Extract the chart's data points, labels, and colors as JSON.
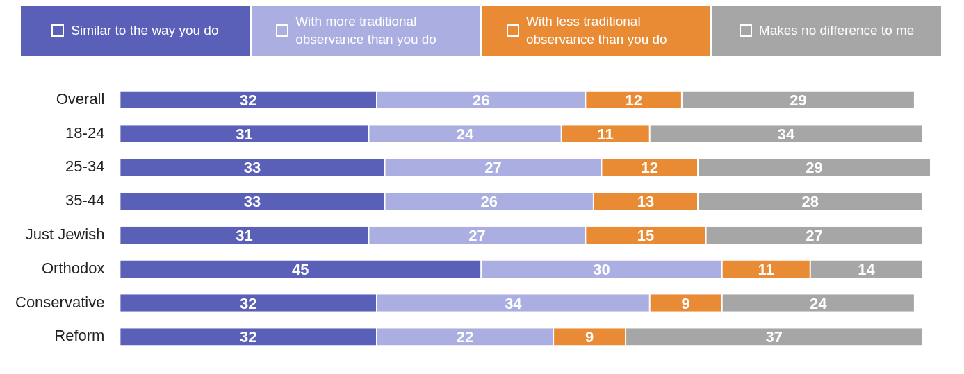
{
  "chart_data": {
    "type": "bar",
    "orientation": "horizontal",
    "stacked": true,
    "data_labels": true,
    "legend": "top",
    "grid": false,
    "categories": [
      "Overall",
      "18-24",
      "25-34",
      "35-44",
      "Just Jewish",
      "Orthodox",
      "Conservative",
      "Reform"
    ],
    "series": [
      {
        "name": "Similar to the way you do",
        "color": "#5a5fb8",
        "values": [
          32,
          31,
          33,
          33,
          31,
          45,
          32,
          32
        ]
      },
      {
        "name": "With more traditional observance than you do",
        "color": "#abaee0",
        "values": [
          26,
          24,
          27,
          26,
          27,
          30,
          34,
          22
        ]
      },
      {
        "name": "With less traditional observance than you do",
        "color": "#e98a35",
        "values": [
          12,
          11,
          12,
          13,
          15,
          11,
          9,
          9
        ]
      },
      {
        "name": "Makes no difference to me",
        "color": "#a6a6a6",
        "values": [
          29,
          34,
          29,
          28,
          27,
          14,
          24,
          37
        ]
      }
    ]
  }
}
